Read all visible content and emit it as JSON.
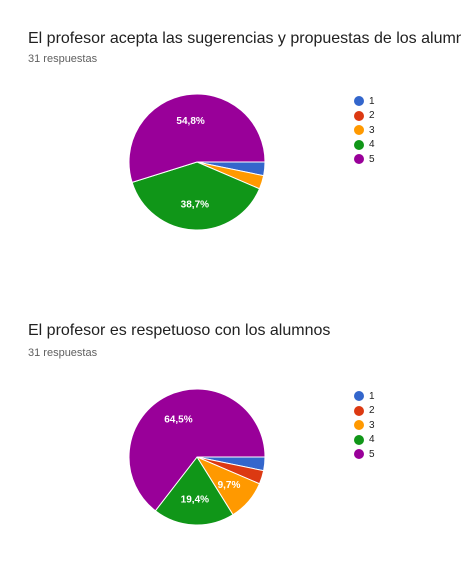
{
  "chart_data": [
    {
      "type": "pie",
      "title": "El profesor acepta las sugerencias y propuestas de los alumnos",
      "subtitle": "31 respuestas",
      "categories": [
        "1",
        "2",
        "3",
        "4",
        "5"
      ],
      "values": [
        1,
        0,
        1,
        12,
        17
      ],
      "percent_labels": [
        "",
        "",
        "",
        "38,7%",
        "54,8%"
      ],
      "colors": [
        "#3366cc",
        "#dc3912",
        "#ff9900",
        "#109618",
        "#990099"
      ],
      "legend_position": "right"
    },
    {
      "type": "pie",
      "title": "El profesor es respetuoso con los alumnos",
      "subtitle": "31 respuestas",
      "categories": [
        "1",
        "2",
        "3",
        "4",
        "5"
      ],
      "values": [
        1,
        1,
        3,
        6,
        20
      ],
      "percent_labels": [
        "",
        "",
        "9,7%",
        "19,4%",
        "64,5%"
      ],
      "colors": [
        "#3366cc",
        "#dc3912",
        "#ff9900",
        "#109618",
        "#990099"
      ],
      "legend_position": "right"
    }
  ]
}
